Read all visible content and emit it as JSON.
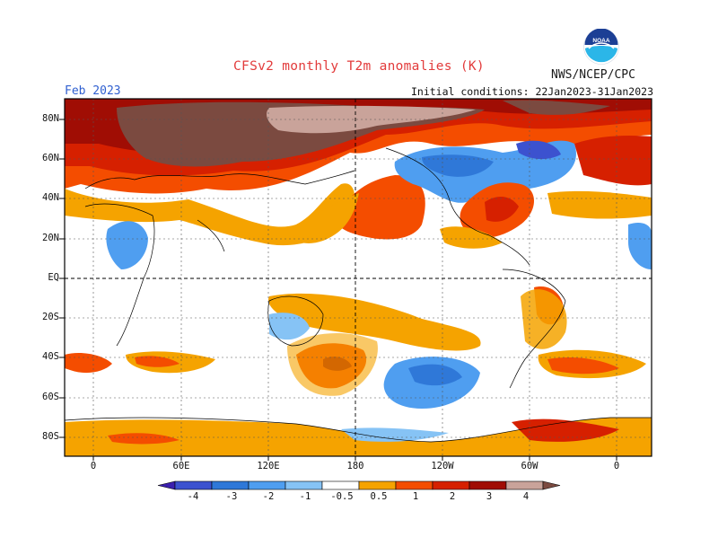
{
  "header": {
    "title": "CFSv2 monthly T2m anomalies (K)",
    "agency": "NWS/NCEP/CPC",
    "logo_text": "NOAA",
    "month": "Feb 2023",
    "initial_conditions": "Initial conditions: 22Jan2023-31Jan2023"
  },
  "axes": {
    "lat_labels": [
      "80N",
      "60N",
      "40N",
      "20N",
      "EQ",
      "20S",
      "40S",
      "60S",
      "80S"
    ],
    "lon_labels": [
      "0",
      "60E",
      "120E",
      "180",
      "120W",
      "60W",
      "0"
    ]
  },
  "colorbar": {
    "tick_labels": [
      "-4",
      "-3",
      "-2",
      "-1",
      "-0.5",
      "0.5",
      "1",
      "2",
      "3",
      "4"
    ],
    "colors": [
      "#3b1fae",
      "#3c52cf",
      "#2f78d8",
      "#4f9ef0",
      "#86c3f5",
      "#ffffff",
      "#f5a300",
      "#f44d00",
      "#d62000",
      "#a00d04",
      "#c9a39a",
      "#7b4a40"
    ]
  },
  "colors": {
    "title": "#e23b3b",
    "month": "#2f5fd0",
    "frame": "#000000"
  }
}
